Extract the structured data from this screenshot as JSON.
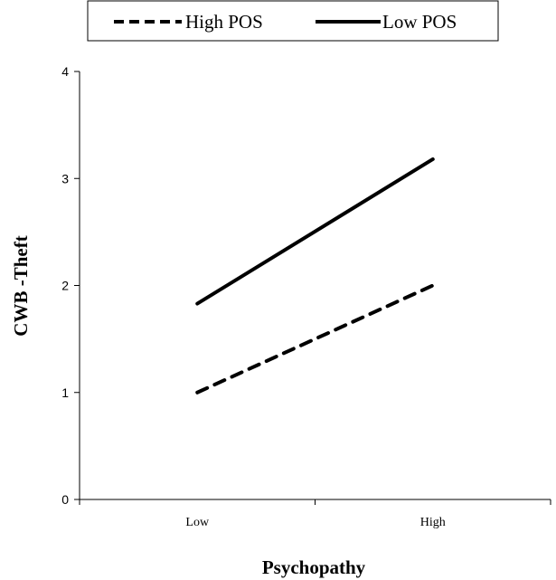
{
  "chart_data": {
    "type": "line",
    "categories": [
      "Low",
      "High"
    ],
    "series": [
      {
        "name": "High POS",
        "values": [
          1.0,
          2.0
        ],
        "style": "dashed",
        "color": "#000000"
      },
      {
        "name": "Low POS",
        "values": [
          1.83,
          3.18
        ],
        "style": "solid",
        "color": "#000000"
      }
    ],
    "xlabel": "Psychopathy",
    "ylabel": "CWB -Theft",
    "ylim": [
      0,
      4
    ],
    "yticks": [
      "0",
      "1",
      "2",
      "3",
      "4"
    ],
    "grid": false,
    "legend_position": "top"
  }
}
